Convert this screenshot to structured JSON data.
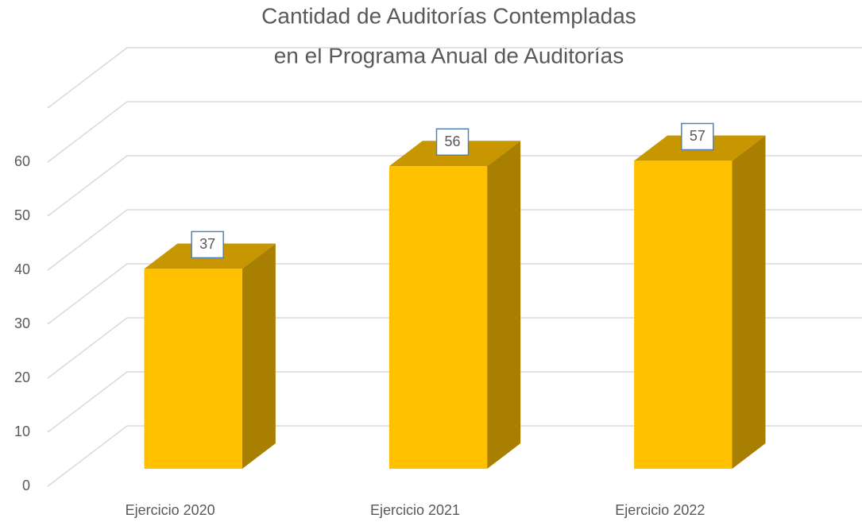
{
  "chart_data": {
    "type": "bar3d",
    "title": [
      "Cantidad de Auditorías Contempladas",
      "en el Programa Anual de Auditorías"
    ],
    "categories": [
      "Ejercicio 2020",
      "Ejercicio 2021",
      "Ejercicio 2022"
    ],
    "values": [
      37,
      56,
      57
    ],
    "color": "#ffc000",
    "ylim": [
      0,
      70
    ],
    "yticks": [
      0,
      10,
      20,
      30,
      40,
      50,
      60
    ],
    "grid": true
  }
}
